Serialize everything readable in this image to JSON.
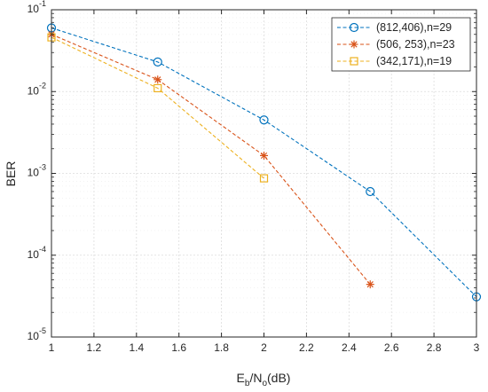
{
  "chart_data": {
    "type": "line",
    "title": "",
    "ylabel": "BER",
    "xlabel": {
      "main": "E",
      "sub1": "b",
      "mid": "/N",
      "sub2": "o",
      "tail": "(dB)"
    },
    "xlim": [
      1,
      3
    ],
    "ylim": [
      1e-05,
      0.1
    ],
    "yscale": "log",
    "grid": true,
    "legend_position": "top-right",
    "x_ticks": [
      "1",
      "1.2",
      "1.4",
      "1.6",
      "1.8",
      "2",
      "2.2",
      "2.4",
      "2.6",
      "2.8",
      "3"
    ],
    "y_ticks": [
      {
        "base": "10",
        "exp": "-1"
      },
      {
        "base": "10",
        "exp": "-2"
      },
      {
        "base": "10",
        "exp": "-3"
      },
      {
        "base": "10",
        "exp": "-4"
      },
      {
        "base": "10",
        "exp": "-5"
      }
    ],
    "series": [
      {
        "name": "(812,406),n=29",
        "color": "#0072BD",
        "marker": "circle",
        "x": [
          1,
          1.5,
          2,
          2.5,
          3
        ],
        "y": [
          0.06,
          0.023,
          0.0045,
          0.0006,
          3.1e-05
        ]
      },
      {
        "name": "(506, 253),n=23",
        "color": "#D95319",
        "marker": "asterisk",
        "x": [
          1,
          1.5,
          2,
          2.5
        ],
        "y": [
          0.05,
          0.014,
          0.00165,
          4.4e-05
        ]
      },
      {
        "name": "(342,171),n=19",
        "color": "#EDB120",
        "marker": "square",
        "x": [
          1,
          1.5,
          2
        ],
        "y": [
          0.046,
          0.011,
          0.00087
        ]
      }
    ]
  }
}
